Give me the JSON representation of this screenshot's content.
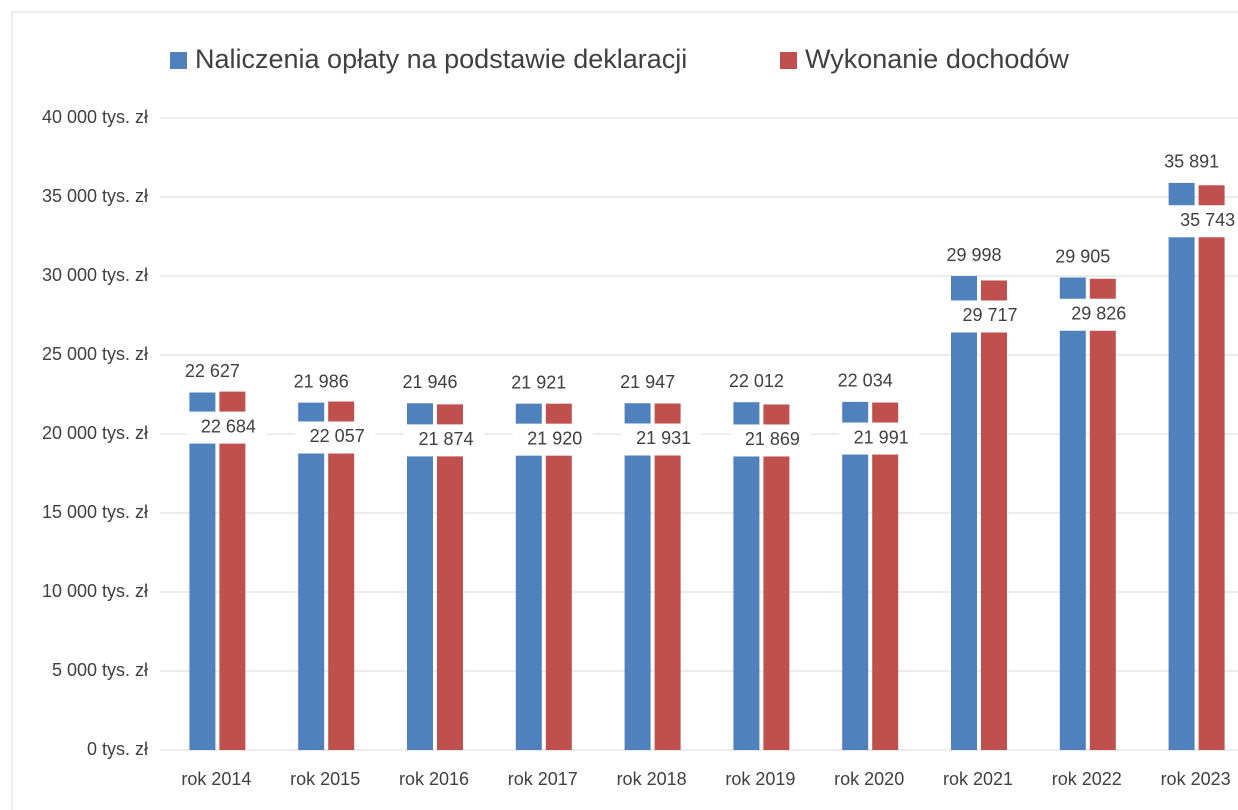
{
  "chart_data": {
    "type": "bar",
    "categories": [
      "rok 2014",
      "rok 2015",
      "rok 2016",
      "rok 2017",
      "rok 2018",
      "rok 2019",
      "rok 2020",
      "rok 2021",
      "rok 2022",
      "rok 2023"
    ],
    "series": [
      {
        "name": "Naliczenia opłaty na podstawie deklaracji",
        "color": "#4f81bd",
        "values": [
          22627,
          21986,
          21946,
          21921,
          21947,
          22012,
          22034,
          29998,
          29905,
          35891
        ],
        "value_labels": [
          "22 627",
          "21 986",
          "21 946",
          "21 921",
          "21 947",
          "22 012",
          "22 034",
          "29 998",
          "29 905",
          "35 891"
        ]
      },
      {
        "name": "Wykonanie dochodów",
        "color": "#c0504d",
        "values": [
          22684,
          22057,
          21874,
          21920,
          21931,
          21869,
          21991,
          29717,
          29826,
          35743
        ],
        "value_labels": [
          "22 684",
          "22 057",
          "21 874",
          "21 920",
          "21 931",
          "21 869",
          "21 991",
          "29 717",
          "29 826",
          "35 743"
        ]
      }
    ],
    "ylim": [
      0,
      40000
    ],
    "yticks": [
      {
        "value": 0,
        "label": "0 tys. zł"
      },
      {
        "value": 5000,
        "label": "5 000 tys. zł"
      },
      {
        "value": 10000,
        "label": "10 000 tys. zł"
      },
      {
        "value": 15000,
        "label": "15 000 tys. zł"
      },
      {
        "value": 20000,
        "label": "20 000 tys. zł"
      },
      {
        "value": 25000,
        "label": "25 000 tys. zł"
      },
      {
        "value": 30000,
        "label": "30 000 tys. zł"
      },
      {
        "value": 35000,
        "label": "35 000 tys. zł"
      },
      {
        "value": 40000,
        "label": "40 000 tys. zł"
      }
    ],
    "grid": true,
    "legend": "top"
  }
}
